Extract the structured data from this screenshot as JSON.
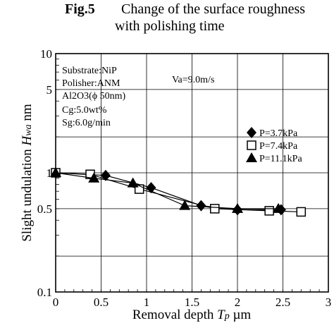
{
  "figure": {
    "number": "Fig.5",
    "title_line1": "Change of the surface roughness",
    "title_line2": "with polishing time"
  },
  "conditions": {
    "lines": [
      "Substrate:NiP",
      "Polisher:ANM",
      "Al2O3(ϕ 50nm)",
      "Cg:5.0wt%",
      "Sg:6.0g/min"
    ],
    "velocity": "Va=9.0m/s"
  },
  "chart_data": {
    "type": "line",
    "xlabel": "Removal depth Tp µm",
    "ylabel": "Slight undulation Hwa nm",
    "xlim": [
      0,
      3
    ],
    "ylim": [
      0.1,
      10
    ],
    "yscale": "log",
    "x_ticks": [
      "0",
      "0.5",
      "1",
      "1.5",
      "2",
      "2.5",
      "3"
    ],
    "y_ticks": [
      "0.1",
      "0.5",
      "1",
      "5",
      "10"
    ],
    "grid": true,
    "legend_position": "right-middle",
    "series": [
      {
        "name": "P=3.7kPa",
        "marker": "diamond",
        "x": [
          0.0,
          0.55,
          1.05,
          1.6,
          2.0,
          2.48
        ],
        "y": [
          1.0,
          0.95,
          0.75,
          0.53,
          0.49,
          0.49
        ]
      },
      {
        "name": "P=7.4kPa",
        "marker": "square",
        "x": [
          0.0,
          0.38,
          0.92,
          1.75,
          2.35,
          2.7
        ],
        "y": [
          1.0,
          0.97,
          0.73,
          0.5,
          0.48,
          0.47
        ]
      },
      {
        "name": "P=11.1kPa",
        "marker": "triangle",
        "x": [
          0.0,
          0.42,
          0.85,
          1.42,
          2.0,
          2.45
        ],
        "y": [
          1.0,
          0.9,
          0.82,
          0.53,
          0.5,
          0.5
        ]
      }
    ]
  }
}
